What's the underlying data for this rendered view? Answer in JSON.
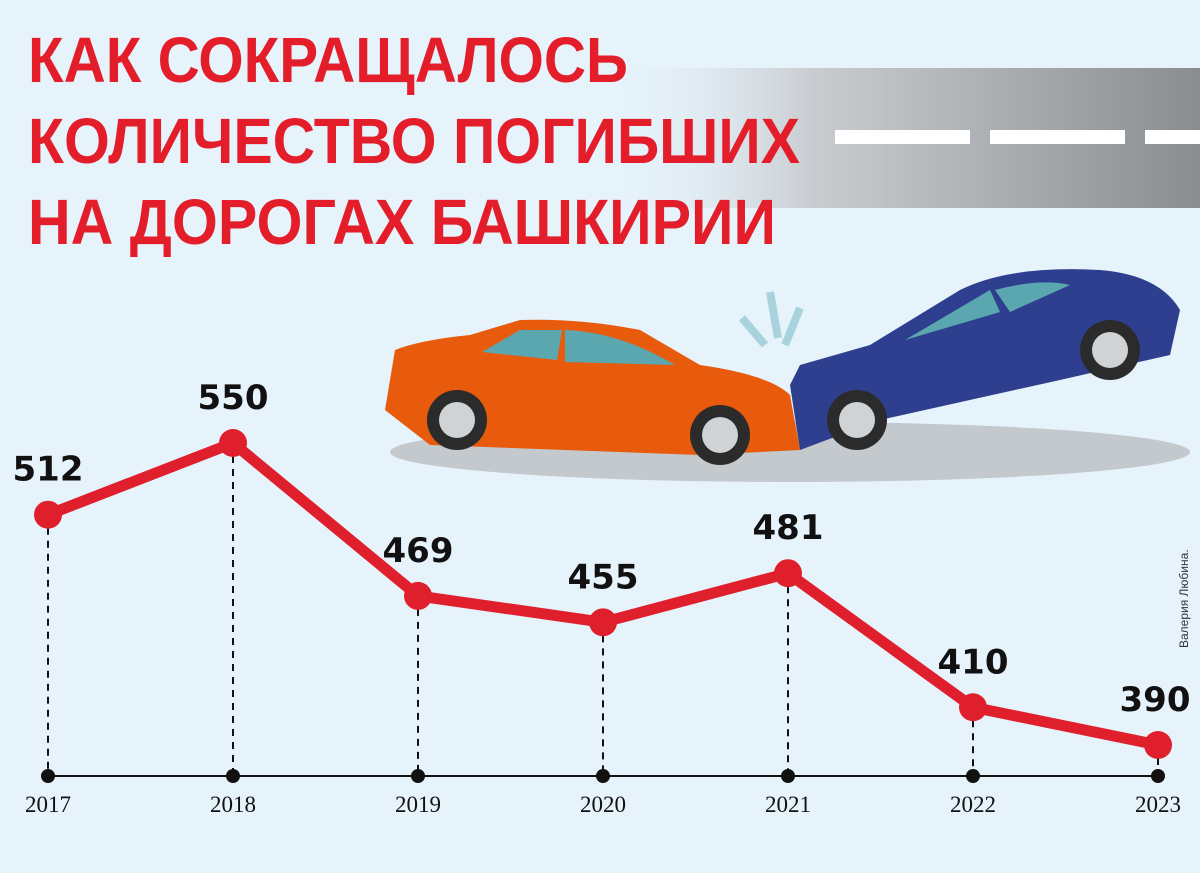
{
  "chart_data": {
    "type": "line",
    "title": [
      "КАК СОКРАЩАЛОСЬ",
      "КОЛИЧЕСТВО ПОГИБШИХ",
      "НА ДОРОГАХ БАШКИРИИ"
    ],
    "credit": "Валерия Любина.",
    "categories": [
      "2017",
      "2018",
      "2019",
      "2020",
      "2021",
      "2022",
      "2023"
    ],
    "values": [
      512,
      550,
      469,
      455,
      481,
      410,
      390
    ],
    "color": "#e01f2d"
  }
}
